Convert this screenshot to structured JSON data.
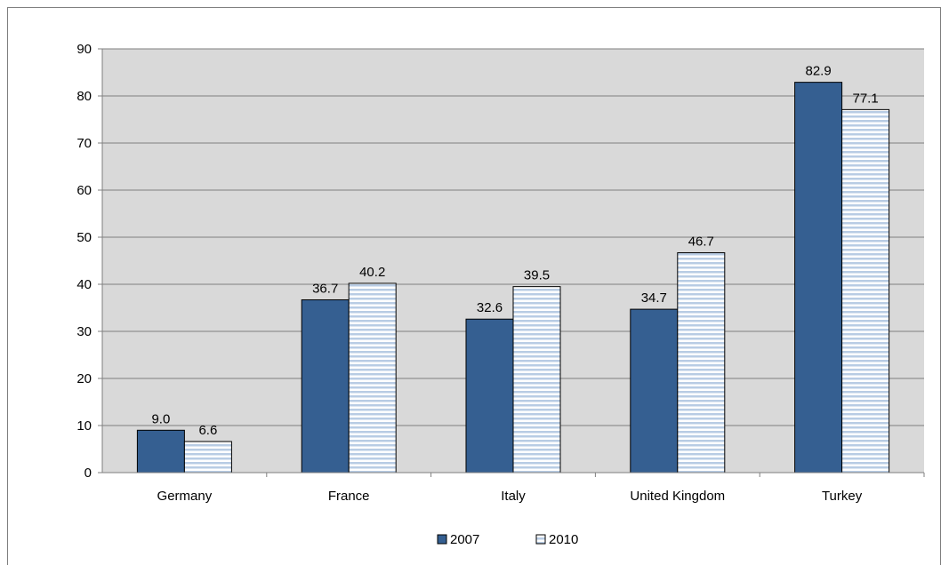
{
  "chart_data": {
    "type": "bar",
    "categories": [
      "Germany",
      "France",
      "Italy",
      "United Kingdom",
      "Turkey"
    ],
    "series": [
      {
        "name": "2007",
        "values": [
          9.0,
          36.7,
          32.6,
          34.7,
          82.9
        ],
        "color": "#355f91",
        "pattern": "solid"
      },
      {
        "name": "2010",
        "values": [
          6.6,
          40.2,
          39.5,
          46.7,
          77.1
        ],
        "color": "#ffffff",
        "stripe_color": "#b8cce4",
        "pattern": "horizontal-stripes"
      }
    ],
    "value_labels": [
      [
        "9.0",
        "36.7",
        "32.6",
        "34.7",
        "82.9"
      ],
      [
        "6.6",
        "40.2",
        "39.5",
        "46.7",
        "77.1"
      ]
    ],
    "y_ticks": [
      "0",
      "10",
      "20",
      "30",
      "40",
      "50",
      "60",
      "70",
      "80",
      "90"
    ],
    "ylim": [
      0,
      90
    ],
    "grid": true,
    "plot_background": "#d9d9d9",
    "legend_position": "bottom",
    "title": "",
    "xlabel": "",
    "ylabel": ""
  }
}
